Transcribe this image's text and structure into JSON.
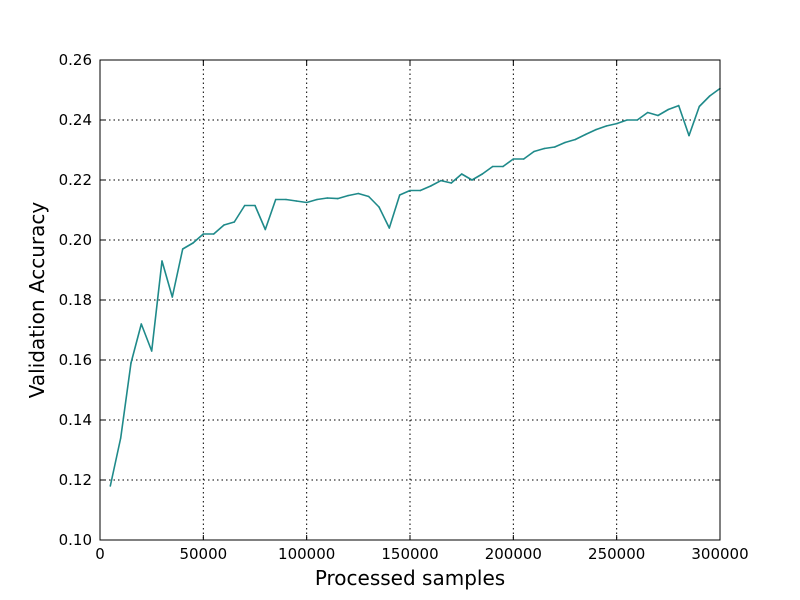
{
  "chart_data": {
    "type": "line",
    "title": "",
    "xlabel": "Processed samples",
    "ylabel": "Validation Accuracy",
    "xlim": [
      0,
      300000
    ],
    "ylim": [
      0.1,
      0.26
    ],
    "grid": true,
    "grid_style": "dotted",
    "x_ticks": [
      0,
      50000,
      100000,
      150000,
      200000,
      250000,
      300000
    ],
    "x_tick_labels": [
      "0",
      "50000",
      "100000",
      "150000",
      "200000",
      "250000",
      "300000"
    ],
    "y_ticks": [
      0.1,
      0.12,
      0.14,
      0.16,
      0.18,
      0.2,
      0.22,
      0.24,
      0.26
    ],
    "y_tick_labels": [
      "0.10",
      "0.12",
      "0.14",
      "0.16",
      "0.18",
      "0.20",
      "0.22",
      "0.24",
      "0.26"
    ],
    "series": [
      {
        "color": "#1f8a8a",
        "x": [
          5000,
          10000,
          15000,
          20000,
          25000,
          30000,
          35000,
          40000,
          45000,
          50000,
          55000,
          60000,
          65000,
          70000,
          75000,
          80000,
          85000,
          90000,
          95000,
          100000,
          105000,
          110000,
          115000,
          120000,
          125000,
          130000,
          135000,
          140000,
          145000,
          150000,
          155000,
          160000,
          165000,
          170000,
          175000,
          180000,
          185000,
          190000,
          195000,
          200000,
          205000,
          210000,
          215000,
          220000,
          225000,
          230000,
          235000,
          240000,
          245000,
          250000,
          255000,
          260000,
          265000,
          270000,
          275000,
          280000,
          285000,
          290000,
          295000,
          300000
        ],
        "y": [
          0.118,
          0.134,
          0.159,
          0.172,
          0.163,
          0.193,
          0.181,
          0.197,
          0.199,
          0.202,
          0.202,
          0.205,
          0.206,
          0.2115,
          0.2115,
          0.2035,
          0.2135,
          0.2135,
          0.213,
          0.2125,
          0.2135,
          0.214,
          0.2138,
          0.2148,
          0.2155,
          0.2145,
          0.211,
          0.204,
          0.215,
          0.2165,
          0.2165,
          0.218,
          0.2198,
          0.219,
          0.222,
          0.22,
          0.222,
          0.2245,
          0.2245,
          0.227,
          0.227,
          0.2295,
          0.2305,
          0.231,
          0.2325,
          0.2335,
          0.2352,
          0.2368,
          0.238,
          0.2388,
          0.24,
          0.24,
          0.2425,
          0.2415,
          0.2435,
          0.2448,
          0.2348,
          0.2445,
          0.248,
          0.2505
        ]
      }
    ]
  }
}
